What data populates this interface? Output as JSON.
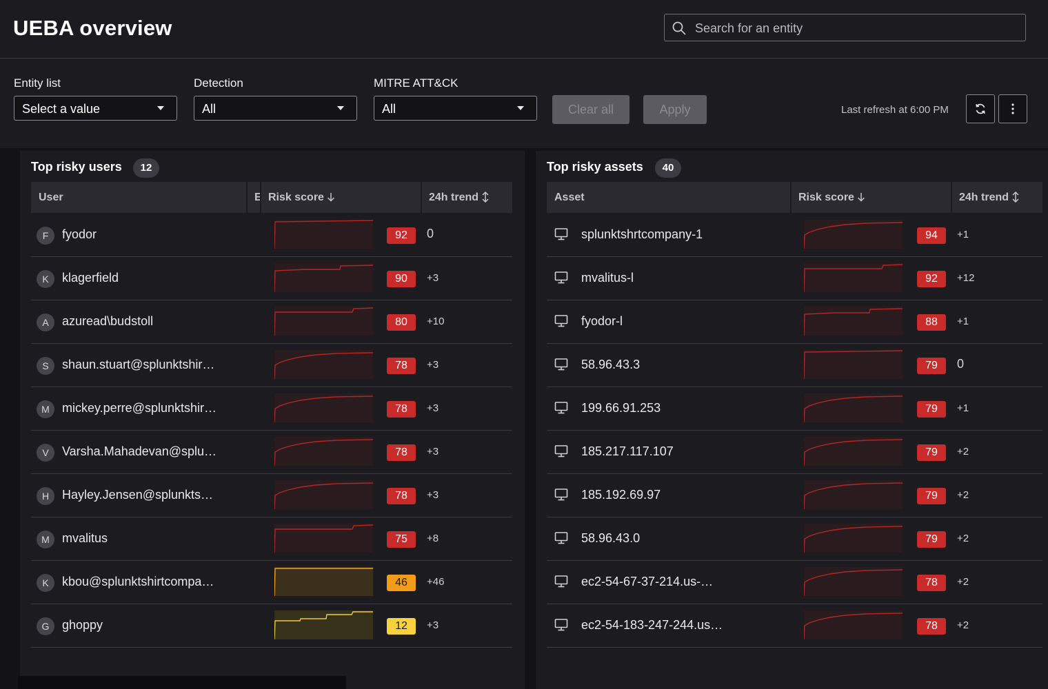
{
  "header": {
    "title": "UEBA overview",
    "search_placeholder": "Search for an entity"
  },
  "filters": {
    "entity_list": {
      "label": "Entity list",
      "value": "Select a value"
    },
    "detection": {
      "label": "Detection",
      "value": "All"
    },
    "mitre": {
      "label": "MITRE ATT&CK",
      "value": "All"
    },
    "clear_label": "Clear all",
    "apply_label": "Apply",
    "last_refresh": "Last refresh at 6:00 PM"
  },
  "users_panel": {
    "title": "Top risky users",
    "count": "12",
    "columns": {
      "user": "User",
      "clipped": "E",
      "risk": "Risk score",
      "trend": "24h trend"
    },
    "rows": [
      {
        "initial": "F",
        "name": "fyodor",
        "score": "92",
        "trend": "0",
        "level": "high"
      },
      {
        "initial": "K",
        "name": "klagerfield",
        "score": "90",
        "trend": "+3",
        "level": "high"
      },
      {
        "initial": "A",
        "name": "azuread\\budstoll",
        "score": "80",
        "trend": "+10",
        "level": "high"
      },
      {
        "initial": "S",
        "name": "shaun.stuart@splunktshir…",
        "score": "78",
        "trend": "+3",
        "level": "high"
      },
      {
        "initial": "M",
        "name": "mickey.perre@splunktshir…",
        "score": "78",
        "trend": "+3",
        "level": "high"
      },
      {
        "initial": "V",
        "name": "Varsha.Mahadevan@splu…",
        "score": "78",
        "trend": "+3",
        "level": "high"
      },
      {
        "initial": "H",
        "name": "Hayley.Jensen@splunkts…",
        "score": "78",
        "trend": "+3",
        "level": "high"
      },
      {
        "initial": "M",
        "name": "mvalitus",
        "score": "75",
        "trend": "+8",
        "level": "high"
      },
      {
        "initial": "K",
        "name": "kbou@splunktshirtcompa…",
        "score": "46",
        "trend": "+46",
        "level": "medium"
      },
      {
        "initial": "G",
        "name": "ghoppy",
        "score": "12",
        "trend": "+3",
        "level": "low"
      }
    ]
  },
  "assets_panel": {
    "title": "Top risky assets",
    "count": "40",
    "columns": {
      "asset": "Asset",
      "risk": "Risk score",
      "trend": "24h trend"
    },
    "rows": [
      {
        "name": "splunktshrtcompany-1",
        "score": "94",
        "trend": "+1"
      },
      {
        "name": "mvalitus-l",
        "score": "92",
        "trend": "+12"
      },
      {
        "name": "fyodor-l",
        "score": "88",
        "trend": "+1"
      },
      {
        "name": "58.96.43.3",
        "score": "79",
        "trend": "0"
      },
      {
        "name": "199.66.91.253",
        "score": "79",
        "trend": "+1"
      },
      {
        "name": "185.217.117.107",
        "score": "79",
        "trend": "+2"
      },
      {
        "name": "185.192.69.97",
        "score": "79",
        "trend": "+2"
      },
      {
        "name": "58.96.43.0",
        "score": "79",
        "trend": "+2"
      },
      {
        "name": "ec2-54-67-37-214.us-…",
        "score": "78",
        "trend": "+2"
      },
      {
        "name": "ec2-54-183-247-244.us…",
        "score": "78",
        "trend": "+2"
      }
    ]
  },
  "colors": {
    "high": "#c92a2a",
    "medium": "#f29d1a",
    "low": "#f7d23e",
    "line_high": "#b32626",
    "line_medium": "#f2a316",
    "line_low": "#f5c842"
  },
  "icons": {
    "search": "search-icon",
    "refresh": "refresh-icon",
    "more": "more-vertical-icon",
    "asset": "monitor-icon",
    "sort_down": "arrow-down-icon",
    "sort_both": "arrow-up-down-icon"
  }
}
